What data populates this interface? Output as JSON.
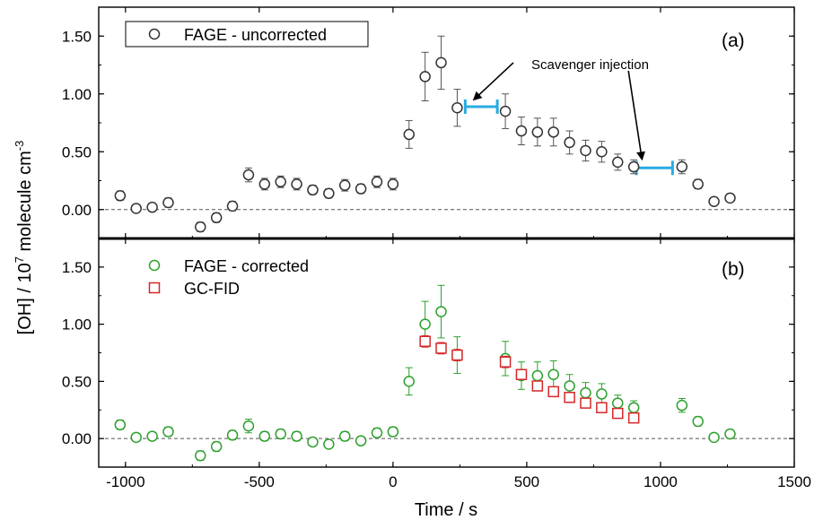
{
  "chart_data": [
    {
      "type": "scatter",
      "panel": "a",
      "panel_label": "(a)",
      "xlim": [
        -1100,
        1500
      ],
      "ylim": [
        -0.25,
        1.75
      ],
      "yticks": [
        0.0,
        0.5,
        1.0,
        1.5
      ],
      "ytick_labels": [
        "0.00",
        "0.50",
        "1.00",
        "1.50"
      ],
      "legend_position": "top-left",
      "series": [
        {
          "name": "FAGE - uncorrected",
          "marker": "circle-open",
          "color": "#333333",
          "points": [
            {
              "x": -1020,
              "y": 0.12,
              "err": 0.04
            },
            {
              "x": -960,
              "y": 0.01,
              "err": 0.03
            },
            {
              "x": -900,
              "y": 0.02,
              "err": 0.03
            },
            {
              "x": -840,
              "y": 0.06,
              "err": 0.04
            },
            {
              "x": -720,
              "y": -0.15,
              "err": 0.04
            },
            {
              "x": -660,
              "y": -0.07,
              "err": 0.04
            },
            {
              "x": -600,
              "y": 0.03,
              "err": 0.04
            },
            {
              "x": -540,
              "y": 0.3,
              "err": 0.06
            },
            {
              "x": -480,
              "y": 0.22,
              "err": 0.05
            },
            {
              "x": -420,
              "y": 0.24,
              "err": 0.05
            },
            {
              "x": -360,
              "y": 0.22,
              "err": 0.05
            },
            {
              "x": -300,
              "y": 0.17,
              "err": 0.04
            },
            {
              "x": -240,
              "y": 0.14,
              "err": 0.04
            },
            {
              "x": -180,
              "y": 0.21,
              "err": 0.05
            },
            {
              "x": -120,
              "y": 0.18,
              "err": 0.04
            },
            {
              "x": -60,
              "y": 0.24,
              "err": 0.05
            },
            {
              "x": 0,
              "y": 0.22,
              "err": 0.05
            },
            {
              "x": 60,
              "y": 0.65,
              "err": 0.12
            },
            {
              "x": 120,
              "y": 1.15,
              "err": 0.21
            },
            {
              "x": 180,
              "y": 1.27,
              "err": 0.23
            },
            {
              "x": 240,
              "y": 0.88,
              "err": 0.16
            },
            {
              "x": 420,
              "y": 0.85,
              "err": 0.15
            },
            {
              "x": 480,
              "y": 0.68,
              "err": 0.12
            },
            {
              "x": 540,
              "y": 0.67,
              "err": 0.12
            },
            {
              "x": 600,
              "y": 0.67,
              "err": 0.12
            },
            {
              "x": 660,
              "y": 0.58,
              "err": 0.1
            },
            {
              "x": 720,
              "y": 0.51,
              "err": 0.09
            },
            {
              "x": 780,
              "y": 0.5,
              "err": 0.09
            },
            {
              "x": 840,
              "y": 0.41,
              "err": 0.07
            },
            {
              "x": 900,
              "y": 0.37,
              "err": 0.06
            },
            {
              "x": 1080,
              "y": 0.37,
              "err": 0.06
            },
            {
              "x": 1140,
              "y": 0.22,
              "err": 0.04
            },
            {
              "x": 1200,
              "y": 0.07,
              "err": 0.03
            },
            {
              "x": 1260,
              "y": 0.1,
              "err": 0.03
            }
          ]
        }
      ],
      "annotations": {
        "text": "Scavenger injection",
        "injection_bars": [
          {
            "x_start": 270,
            "x_end": 390,
            "y": 0.89,
            "arrow_from": [
              450,
              1.27
            ]
          },
          {
            "x_start": 910,
            "x_end": 1045,
            "y": 0.36,
            "arrow_from": [
              880,
              1.2
            ]
          }
        ],
        "bar_color": "#29abe2"
      }
    },
    {
      "type": "scatter",
      "panel": "b",
      "panel_label": "(b)",
      "xlim": [
        -1100,
        1500
      ],
      "ylim": [
        -0.25,
        1.75
      ],
      "yticks": [
        0.0,
        0.5,
        1.0,
        1.5
      ],
      "ytick_labels": [
        "0.00",
        "0.50",
        "1.00",
        "1.50"
      ],
      "xticks": [
        -1000,
        -500,
        0,
        500,
        1000,
        1500
      ],
      "xtick_labels": [
        "-1000",
        "-500",
        "0",
        "500",
        "1000",
        "1500"
      ],
      "legend_position": "top-left",
      "series": [
        {
          "name": "FAGE - corrected",
          "marker": "circle-open",
          "color": "#2ca02c",
          "points": [
            {
              "x": -1020,
              "y": 0.12,
              "err": 0.04
            },
            {
              "x": -960,
              "y": 0.01,
              "err": 0.03
            },
            {
              "x": -900,
              "y": 0.02,
              "err": 0.03
            },
            {
              "x": -840,
              "y": 0.06,
              "err": 0.04
            },
            {
              "x": -720,
              "y": -0.15,
              "err": 0.04
            },
            {
              "x": -660,
              "y": -0.07,
              "err": 0.04
            },
            {
              "x": -600,
              "y": 0.03,
              "err": 0.04
            },
            {
              "x": -540,
              "y": 0.11,
              "err": 0.06
            },
            {
              "x": -480,
              "y": 0.02,
              "err": 0.04
            },
            {
              "x": -420,
              "y": 0.04,
              "err": 0.04
            },
            {
              "x": -360,
              "y": 0.02,
              "err": 0.04
            },
            {
              "x": -300,
              "y": -0.03,
              "err": 0.03
            },
            {
              "x": -240,
              "y": -0.05,
              "err": 0.03
            },
            {
              "x": -180,
              "y": 0.02,
              "err": 0.04
            },
            {
              "x": -120,
              "y": -0.02,
              "err": 0.03
            },
            {
              "x": -60,
              "y": 0.05,
              "err": 0.04
            },
            {
              "x": 0,
              "y": 0.06,
              "err": 0.04
            },
            {
              "x": 60,
              "y": 0.5,
              "err": 0.12
            },
            {
              "x": 120,
              "y": 1.0,
              "err": 0.2
            },
            {
              "x": 180,
              "y": 1.11,
              "err": 0.23
            },
            {
              "x": 240,
              "y": 0.73,
              "err": 0.16
            },
            {
              "x": 420,
              "y": 0.7,
              "err": 0.15
            },
            {
              "x": 480,
              "y": 0.55,
              "err": 0.12
            },
            {
              "x": 540,
              "y": 0.55,
              "err": 0.12
            },
            {
              "x": 600,
              "y": 0.56,
              "err": 0.12
            },
            {
              "x": 660,
              "y": 0.46,
              "err": 0.1
            },
            {
              "x": 720,
              "y": 0.4,
              "err": 0.09
            },
            {
              "x": 780,
              "y": 0.39,
              "err": 0.09
            },
            {
              "x": 840,
              "y": 0.31,
              "err": 0.07
            },
            {
              "x": 900,
              "y": 0.27,
              "err": 0.06
            },
            {
              "x": 1080,
              "y": 0.29,
              "err": 0.06
            },
            {
              "x": 1140,
              "y": 0.15,
              "err": 0.04
            },
            {
              "x": 1200,
              "y": 0.01,
              "err": 0.03
            },
            {
              "x": 1260,
              "y": 0.04,
              "err": 0.03
            }
          ]
        },
        {
          "name": "GC-FID",
          "marker": "square-open",
          "color": "#d62728",
          "points": [
            {
              "x": 120,
              "y": 0.85,
              "err": 0.05
            },
            {
              "x": 180,
              "y": 0.79,
              "err": 0.05
            },
            {
              "x": 240,
              "y": 0.73,
              "err": 0.05
            },
            {
              "x": 420,
              "y": 0.67,
              "err": 0.05
            },
            {
              "x": 480,
              "y": 0.56,
              "err": 0.04
            },
            {
              "x": 540,
              "y": 0.46,
              "err": 0.04
            },
            {
              "x": 600,
              "y": 0.41,
              "err": 0.03
            },
            {
              "x": 660,
              "y": 0.36,
              "err": 0.03
            },
            {
              "x": 720,
              "y": 0.31,
              "err": 0.03
            },
            {
              "x": 780,
              "y": 0.27,
              "err": 0.03
            },
            {
              "x": 840,
              "y": 0.22,
              "err": 0.03
            },
            {
              "x": 900,
              "y": 0.18,
              "err": 0.02
            }
          ]
        }
      ]
    }
  ],
  "axes": {
    "xlabel": "Time / s",
    "ylabel_main": "[OH] / 10",
    "ylabel_sup": "7",
    "ylabel_tail": " molecule cm",
    "ylabel_sup2": "-3"
  }
}
